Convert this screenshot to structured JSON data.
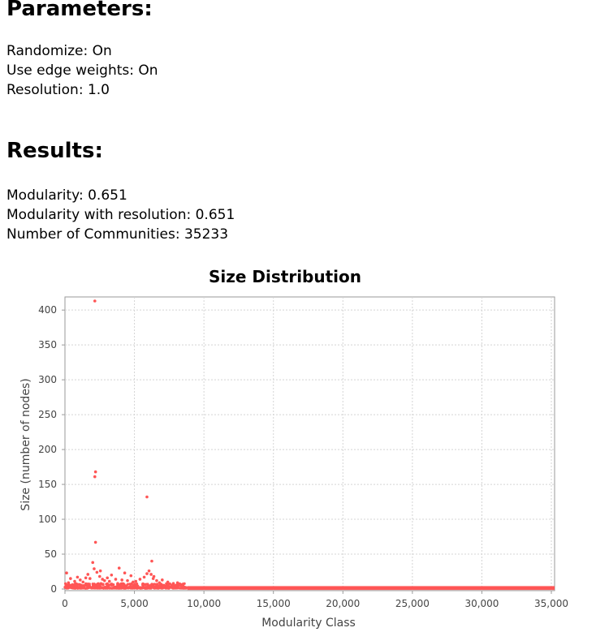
{
  "parameters": {
    "heading": "Parameters:",
    "randomize": "Randomize: On",
    "edge_weights": "Use edge weights: On",
    "resolution": "Resolution: 1.0"
  },
  "results": {
    "heading": "Results:",
    "modularity": "Modularity: 0.651",
    "modularity_resolution": "Modularity with resolution: 0.651",
    "communities": "Number of Communities: 35233"
  },
  "chart_data": {
    "type": "scatter",
    "title": "Size Distribution",
    "xlabel": "Modularity Class",
    "ylabel": "Size (number of nodes)",
    "xlim": [
      0,
      35233
    ],
    "ylim": [
      0,
      415
    ],
    "x_ticks": [
      "0",
      "5,000",
      "10,000",
      "15,000",
      "20,000",
      "25,000",
      "30,000",
      "35,000"
    ],
    "y_ticks": [
      "0",
      "50",
      "100",
      "150",
      "200",
      "250",
      "300",
      "350",
      "400"
    ],
    "grid": true,
    "point_color": "#ff5555",
    "points": [
      {
        "x": 2150,
        "y": 413
      },
      {
        "x": 2200,
        "y": 168
      },
      {
        "x": 2150,
        "y": 161
      },
      {
        "x": 5900,
        "y": 132
      },
      {
        "x": 2200,
        "y": 67
      },
      {
        "x": 6250,
        "y": 40
      },
      {
        "x": 2000,
        "y": 38
      },
      {
        "x": 3900,
        "y": 30
      },
      {
        "x": 2100,
        "y": 29
      },
      {
        "x": 2550,
        "y": 26
      },
      {
        "x": 6050,
        "y": 26
      },
      {
        "x": 2300,
        "y": 24
      },
      {
        "x": 120,
        "y": 23
      },
      {
        "x": 4300,
        "y": 23
      },
      {
        "x": 5900,
        "y": 22
      },
      {
        "x": 6200,
        "y": 21
      },
      {
        "x": 1650,
        "y": 21
      },
      {
        "x": 3350,
        "y": 20
      },
      {
        "x": 4750,
        "y": 19
      },
      {
        "x": 2500,
        "y": 18
      },
      {
        "x": 6400,
        "y": 18
      },
      {
        "x": 900,
        "y": 17
      },
      {
        "x": 5700,
        "y": 17
      },
      {
        "x": 1500,
        "y": 16
      },
      {
        "x": 3050,
        "y": 16
      },
      {
        "x": 6350,
        "y": 15
      },
      {
        "x": 400,
        "y": 15
      },
      {
        "x": 1800,
        "y": 15
      },
      {
        "x": 3650,
        "y": 14
      },
      {
        "x": 5400,
        "y": 14
      },
      {
        "x": 2700,
        "y": 14
      },
      {
        "x": 7000,
        "y": 13
      },
      {
        "x": 4100,
        "y": 13
      },
      {
        "x": 1100,
        "y": 13
      },
      {
        "x": 2850,
        "y": 12
      },
      {
        "x": 4500,
        "y": 12
      },
      {
        "x": 6600,
        "y": 12
      },
      {
        "x": 3200,
        "y": 11
      },
      {
        "x": 5100,
        "y": 11
      },
      {
        "x": 700,
        "y": 11
      },
      {
        "x": 7400,
        "y": 10
      },
      {
        "x": 1300,
        "y": 10
      },
      {
        "x": 4900,
        "y": 10
      },
      {
        "x": 8100,
        "y": 9
      },
      {
        "x": 6800,
        "y": 9
      },
      {
        "x": 250,
        "y": 9
      },
      {
        "x": 7800,
        "y": 8
      },
      {
        "x": 3800,
        "y": 8
      },
      {
        "x": 8500,
        "y": 7
      },
      {
        "x": 5600,
        "y": 7
      }
    ],
    "dense_band": [
      {
        "x_from": 0,
        "x_to": 8800,
        "y_min": 1,
        "y_max": 8
      },
      {
        "x_from": 8800,
        "y_to_end": 35233,
        "x_to": 35233,
        "y_min": 1,
        "y_max": 3
      }
    ]
  }
}
